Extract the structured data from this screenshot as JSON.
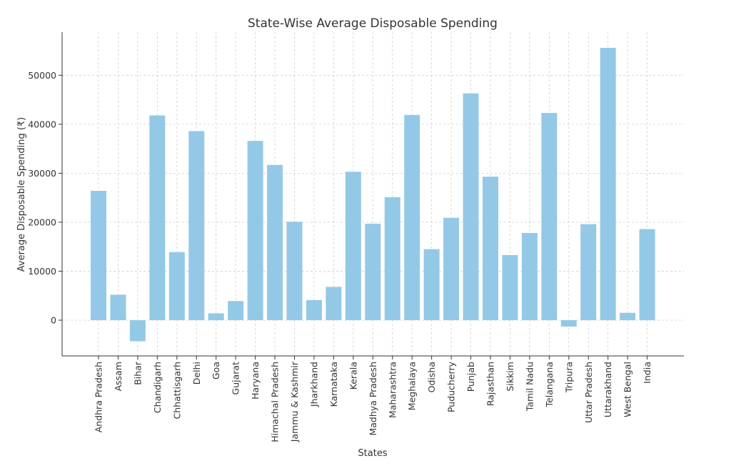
{
  "chart_data": {
    "type": "bar",
    "title": "State-Wise Average Disposable Spending",
    "xlabel": "States",
    "ylabel": "Average Disposable Spending (₹)",
    "ylim": [
      -7300,
      58800
    ],
    "yticks": [
      0,
      10000,
      20000,
      30000,
      40000,
      50000
    ],
    "grid": true,
    "bar_color": "#93c9e6",
    "categories": [
      "Andhra Pradesh",
      "Assam",
      "Bihar",
      "Chandigarh",
      "Chhattisgarh",
      "Delhi",
      "Goa",
      "Gujarat",
      "Haryana",
      "Himachal Pradesh",
      "Jammu & Kashmir",
      "Jharkhand",
      "Karnataka",
      "Kerala",
      "Madhya Pradesh",
      "Maharashtra",
      "Meghalaya",
      "Odisha",
      "Puducherry",
      "Punjab",
      "Rajasthan",
      "Sikkim",
      "Tamil Nadu",
      "Telangana",
      "Tripura",
      "Uttar Pradesh",
      "Uttarakhand",
      "West Bengal",
      "India"
    ],
    "values": [
      26400,
      5200,
      -4300,
      41800,
      13900,
      38600,
      1400,
      3900,
      36600,
      31700,
      20100,
      4100,
      6800,
      30300,
      19700,
      25100,
      41900,
      14500,
      20900,
      46300,
      29300,
      13300,
      17800,
      42300,
      -1300,
      19600,
      55600,
      1500,
      18600
    ]
  }
}
